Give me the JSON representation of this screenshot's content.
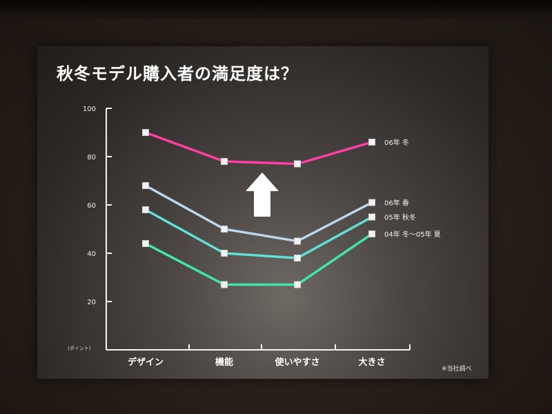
{
  "slide": {
    "title": "秋冬モデル購入者の満足度は？",
    "source_note": "※当社調べ"
  },
  "chart_data": {
    "type": "line",
    "title": "秋冬モデル購入者の満足度は？",
    "ylabel": "(ポイント)",
    "ylim": [
      0,
      100
    ],
    "yticks": [
      20,
      40,
      60,
      80,
      100
    ],
    "categories": [
      "デザイン",
      "機能",
      "使いやすさ",
      "大きさ"
    ],
    "grid": false,
    "legend": "right, inline labels at series ends",
    "annotation": "upward arrow",
    "series": [
      {
        "name": "06年 冬",
        "values": [
          90,
          78,
          77,
          86
        ],
        "color": "#ff3fa7"
      },
      {
        "name": "06年 春",
        "values": [
          68,
          50,
          45,
          61
        ],
        "color": "#b9d8ee"
      },
      {
        "name": "05年 秋冬",
        "values": [
          58,
          40,
          38,
          55
        ],
        "color": "#5fe0d8"
      },
      {
        "name": "04年 冬〜05年 夏",
        "values": [
          44,
          27,
          27,
          48
        ],
        "color": "#3fe6b2"
      }
    ]
  }
}
